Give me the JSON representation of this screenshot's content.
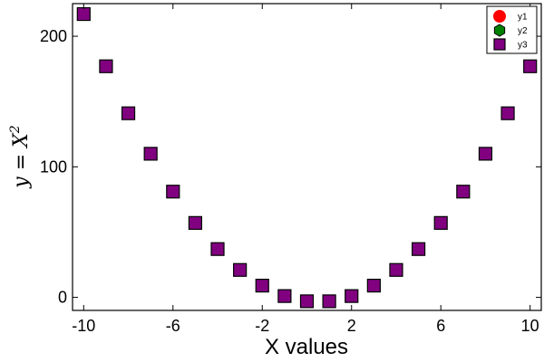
{
  "chart_data": {
    "type": "scatter",
    "xlabel": "X values",
    "ylabel": {
      "base": "y = X",
      "exponent": "2"
    },
    "xlim": [
      -10.5,
      10.5
    ],
    "ylim": [
      -10,
      225
    ],
    "xticks": [
      -10,
      -6,
      -2,
      2,
      6,
      10
    ],
    "xtick_labels": [
      "-10",
      "-6",
      "-2",
      "2",
      "6",
      "10"
    ],
    "yticks": [
      0,
      100,
      200
    ],
    "ytick_labels": [
      "0",
      "100",
      "200"
    ],
    "grid": false,
    "legend_position": "top-right",
    "series": [
      {
        "name": "y1",
        "marker": "circle",
        "color": "#ff0000",
        "x": [],
        "y": []
      },
      {
        "name": "y2",
        "marker": "hexagon",
        "color": "#008000",
        "x": [],
        "y": []
      },
      {
        "name": "y3",
        "marker": "square",
        "color": "#800080",
        "x": [
          -10,
          -9,
          -8,
          -7,
          -6,
          -5,
          -4,
          -3,
          -2,
          -1,
          0,
          1,
          2,
          3,
          4,
          5,
          6,
          7,
          8,
          9,
          10
        ],
        "y": [
          217,
          177,
          141,
          110,
          81,
          57,
          37,
          21,
          9,
          1,
          -3,
          -3,
          1,
          9,
          21,
          37,
          57,
          81,
          110,
          141,
          177
        ]
      }
    ]
  }
}
